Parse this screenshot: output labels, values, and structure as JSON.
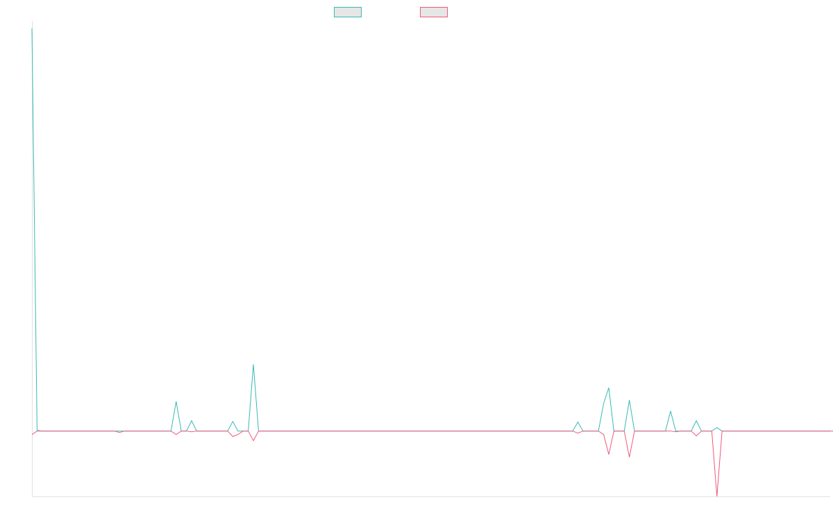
{
  "chart_data": {
    "type": "line",
    "title": "",
    "xlabel": "",
    "ylabel": "",
    "legend_placement": "top-center",
    "grid": false,
    "ylim": [
      -95,
      590
    ],
    "series": [
      {
        "name": "",
        "color": "#36b9b3",
        "fill": "#e6e6e6",
        "values": [
          585,
          1,
          0,
          0,
          0,
          0,
          0,
          0,
          0,
          0,
          0,
          0,
          0,
          0,
          0,
          0,
          0,
          0,
          0,
          0,
          0,
          0,
          0,
          0,
          0,
          0,
          0,
          0,
          43,
          0,
          0,
          15,
          0,
          0,
          0,
          0,
          0,
          0,
          0,
          14,
          0,
          0,
          0,
          97,
          0,
          0,
          0,
          0,
          0,
          0,
          0,
          0,
          0,
          0,
          0,
          0,
          0,
          0,
          0,
          0,
          0,
          0,
          0,
          0,
          0,
          0,
          0,
          0,
          0,
          0,
          0,
          0,
          0,
          0,
          0,
          0,
          0,
          0,
          0,
          0,
          0,
          0,
          0,
          0,
          0,
          0,
          0,
          0,
          0,
          0,
          0,
          0,
          0,
          0,
          0,
          0,
          0,
          0,
          0,
          0,
          0,
          0,
          0,
          0,
          0,
          0,
          13,
          0,
          0,
          0,
          0,
          40,
          63,
          0,
          0,
          0,
          45,
          0,
          0,
          0,
          0,
          0,
          0,
          0,
          29,
          0,
          0,
          0,
          0,
          15,
          0,
          0,
          0,
          5,
          0,
          0,
          0,
          0,
          0,
          0,
          0,
          0,
          0,
          0,
          0,
          0,
          0,
          0,
          0,
          0,
          0,
          0,
          0,
          0,
          0,
          0
        ]
      },
      {
        "name": "",
        "color": "#f0577a",
        "fill": "#e6e6e6",
        "values": [
          -5,
          0,
          0,
          0,
          0,
          0,
          0,
          0,
          0,
          0,
          0,
          0,
          0,
          0,
          0,
          0,
          0,
          -2,
          0,
          0,
          0,
          0,
          0,
          0,
          0,
          0,
          0,
          0,
          -5,
          0,
          0,
          -1,
          0,
          0,
          0,
          0,
          0,
          0,
          0,
          -8,
          -5,
          0,
          0,
          -14,
          0,
          0,
          0,
          0,
          0,
          0,
          0,
          0,
          0,
          0,
          0,
          0,
          0,
          0,
          0,
          0,
          0,
          0,
          0,
          0,
          0,
          0,
          0,
          0,
          0,
          0,
          0,
          0,
          0,
          0,
          0,
          0,
          0,
          0,
          0,
          0,
          0,
          0,
          0,
          0,
          0,
          0,
          0,
          0,
          0,
          0,
          0,
          0,
          0,
          0,
          0,
          0,
          0,
          0,
          0,
          0,
          0,
          0,
          0,
          0,
          0,
          0,
          -3,
          0,
          0,
          0,
          0,
          -5,
          -34,
          0,
          0,
          0,
          -38,
          0,
          0,
          0,
          0,
          0,
          0,
          0,
          0,
          -1,
          0,
          0,
          0,
          -7,
          0,
          0,
          0,
          -95,
          0,
          0,
          0,
          0,
          0,
          0,
          0,
          0,
          0,
          0,
          0,
          0,
          0,
          0,
          0,
          0,
          0,
          0,
          0,
          0,
          0,
          0,
          0,
          0
        ]
      }
    ]
  }
}
